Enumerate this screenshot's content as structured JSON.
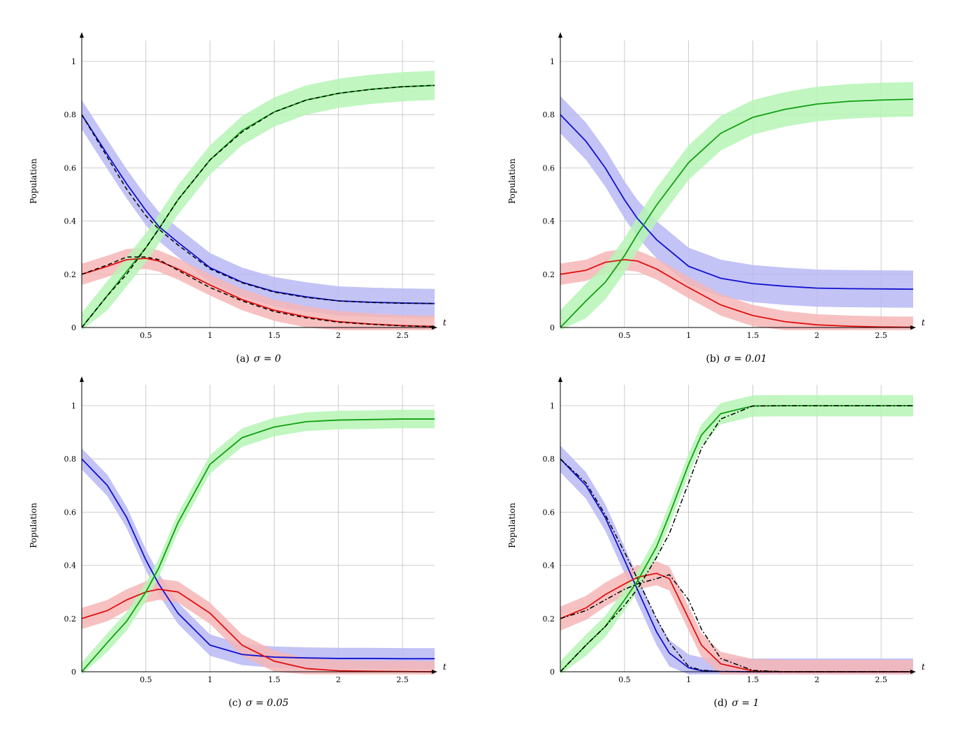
{
  "figure": {
    "colors": {
      "susceptible": "#1010d0",
      "infected": "#e01010",
      "recovered": "#10a010",
      "susceptible_band": "#b8b8f5",
      "infected_band": "#f6b6b6",
      "recovered_band": "#b6f4b6",
      "reference": "#000000",
      "grid": "#c0c0c0"
    }
  },
  "chart_data": [
    {
      "type": "line",
      "caption": "(a)",
      "caption_sigma": "σ = 0",
      "ylabel": "Population",
      "xlabel": "t",
      "xlim": [
        0,
        2.75
      ],
      "ylim": [
        0,
        1.1
      ],
      "x_ticks": [
        "0.5",
        "1",
        "1.5",
        "2",
        "2.5"
      ],
      "y_ticks": [
        "0",
        "0.2",
        "0.4",
        "0.6",
        "0.8",
        "1"
      ],
      "grid": true,
      "x": [
        0,
        0.2,
        0.35,
        0.5,
        0.6,
        0.75,
        1.0,
        1.25,
        1.5,
        1.75,
        2.0,
        2.25,
        2.5,
        2.75
      ],
      "series": [
        {
          "key": "susceptible",
          "y": [
            0.8,
            0.65,
            0.54,
            0.44,
            0.38,
            0.32,
            0.225,
            0.17,
            0.135,
            0.115,
            0.1,
            0.095,
            0.092,
            0.09
          ],
          "band": 0.055
        },
        {
          "key": "infected",
          "y": [
            0.2,
            0.23,
            0.255,
            0.26,
            0.25,
            0.22,
            0.16,
            0.105,
            0.065,
            0.04,
            0.022,
            0.013,
            0.007,
            0.004
          ],
          "band": 0.04
        },
        {
          "key": "recovered",
          "y": [
            0.0,
            0.12,
            0.21,
            0.3,
            0.37,
            0.48,
            0.63,
            0.74,
            0.81,
            0.855,
            0.88,
            0.895,
            0.905,
            0.91
          ],
          "band": 0.055
        }
      ],
      "reference": {
        "style": "dashed",
        "series": [
          [
            0.8,
            0.64,
            0.52,
            0.42,
            0.37,
            0.31,
            0.22,
            0.168,
            0.133,
            0.113,
            0.1,
            0.094,
            0.091,
            0.09
          ],
          [
            0.2,
            0.235,
            0.265,
            0.265,
            0.255,
            0.215,
            0.15,
            0.1,
            0.06,
            0.036,
            0.02,
            0.012,
            0.006,
            0.003
          ],
          [
            0.0,
            0.12,
            0.2,
            0.3,
            0.37,
            0.48,
            0.63,
            0.735,
            0.81,
            0.855,
            0.88,
            0.895,
            0.905,
            0.91
          ]
        ]
      }
    },
    {
      "type": "line",
      "caption": "(b)",
      "caption_sigma": "σ = 0.01",
      "ylabel": "Population",
      "xlabel": "t",
      "xlim": [
        0,
        2.75
      ],
      "ylim": [
        0,
        1.1
      ],
      "x_ticks": [
        "0.5",
        "1",
        "1.5",
        "2",
        "2.5"
      ],
      "y_ticks": [
        "0",
        "0.2",
        "0.4",
        "0.6",
        "0.8",
        "1"
      ],
      "grid": true,
      "x": [
        0,
        0.2,
        0.35,
        0.5,
        0.6,
        0.75,
        1.0,
        1.25,
        1.5,
        1.75,
        2.0,
        2.25,
        2.5,
        2.75
      ],
      "series": [
        {
          "key": "susceptible",
          "y": [
            0.8,
            0.7,
            0.6,
            0.48,
            0.41,
            0.33,
            0.23,
            0.185,
            0.165,
            0.155,
            0.148,
            0.146,
            0.145,
            0.144
          ],
          "band": 0.07
        },
        {
          "key": "infected",
          "y": [
            0.2,
            0.215,
            0.245,
            0.255,
            0.25,
            0.22,
            0.15,
            0.085,
            0.045,
            0.022,
            0.01,
            0.005,
            0.002,
            0.001
          ],
          "band": 0.04
        },
        {
          "key": "recovered",
          "y": [
            0.0,
            0.1,
            0.17,
            0.27,
            0.35,
            0.46,
            0.62,
            0.73,
            0.79,
            0.82,
            0.84,
            0.85,
            0.855,
            0.858
          ],
          "band": 0.065
        }
      ]
    },
    {
      "type": "line",
      "caption": "(c)",
      "caption_sigma": "σ = 0.05",
      "ylabel": "Population",
      "xlabel": "t",
      "xlim": [
        0,
        2.75
      ],
      "ylim": [
        0,
        1.1
      ],
      "x_ticks": [
        "0.5",
        "1",
        "1.5",
        "2",
        "2.5"
      ],
      "y_ticks": [
        "0",
        "0.2",
        "0.4",
        "0.6",
        "0.8",
        "1"
      ],
      "grid": true,
      "x": [
        0,
        0.2,
        0.35,
        0.5,
        0.6,
        0.75,
        1.0,
        1.25,
        1.5,
        1.75,
        2.0,
        2.25,
        2.5,
        2.75
      ],
      "series": [
        {
          "key": "susceptible",
          "y": [
            0.8,
            0.7,
            0.58,
            0.42,
            0.33,
            0.22,
            0.1,
            0.065,
            0.055,
            0.052,
            0.05,
            0.05,
            0.049,
            0.049
          ],
          "band": 0.04
        },
        {
          "key": "infected",
          "y": [
            0.2,
            0.23,
            0.27,
            0.3,
            0.31,
            0.3,
            0.22,
            0.1,
            0.04,
            0.012,
            0.004,
            0.002,
            0.001,
            0.0
          ],
          "band": 0.04
        },
        {
          "key": "recovered",
          "y": [
            0.0,
            0.11,
            0.19,
            0.3,
            0.39,
            0.56,
            0.78,
            0.88,
            0.92,
            0.94,
            0.946,
            0.948,
            0.95,
            0.95
          ],
          "band": 0.035
        }
      ]
    },
    {
      "type": "line",
      "caption": "(d)",
      "caption_sigma": "σ = 1",
      "ylabel": "Population",
      "xlabel": "t",
      "xlim": [
        0,
        2.75
      ],
      "ylim": [
        0,
        1.1
      ],
      "x_ticks": [
        "0.5",
        "1",
        "1.5",
        "2",
        "2.5"
      ],
      "y_ticks": [
        "0",
        "0.2",
        "0.4",
        "0.6",
        "0.8",
        "1"
      ],
      "grid": true,
      "x": [
        0,
        0.2,
        0.35,
        0.5,
        0.6,
        0.75,
        0.85,
        1.0,
        1.1,
        1.25,
        1.5,
        1.75,
        2.0,
        2.25,
        2.5,
        2.75
      ],
      "series": [
        {
          "key": "susceptible",
          "y": [
            0.8,
            0.7,
            0.58,
            0.42,
            0.31,
            0.15,
            0.07,
            0.015,
            0.004,
            0.001,
            0.0,
            0.0,
            0.0,
            0.0,
            0.0,
            0.0
          ],
          "band": 0.05
        },
        {
          "key": "infected",
          "y": [
            0.2,
            0.24,
            0.29,
            0.33,
            0.355,
            0.37,
            0.35,
            0.2,
            0.1,
            0.03,
            0.003,
            0.0,
            0.0,
            0.0,
            0.0,
            0.0
          ],
          "band": 0.045
        },
        {
          "key": "recovered",
          "y": [
            0.0,
            0.1,
            0.17,
            0.27,
            0.34,
            0.47,
            0.59,
            0.78,
            0.89,
            0.97,
            0.999,
            1.0,
            1.0,
            1.0,
            1.0,
            1.0
          ],
          "band": 0.04
        }
      ],
      "reference": {
        "style": "dashdot",
        "series": [
          [
            0.8,
            0.71,
            0.59,
            0.45,
            0.35,
            0.2,
            0.11,
            0.02,
            0.006,
            0.001,
            0.0,
            0.0,
            0.0,
            0.0,
            0.0,
            0.0
          ],
          [
            0.2,
            0.23,
            0.27,
            0.31,
            0.33,
            0.35,
            0.365,
            0.27,
            0.16,
            0.05,
            0.005,
            0.0,
            0.0,
            0.0,
            0.0,
            0.0
          ],
          [
            0.0,
            0.1,
            0.17,
            0.25,
            0.31,
            0.43,
            0.52,
            0.71,
            0.84,
            0.95,
            0.999,
            1.0,
            1.0,
            1.0,
            1.0,
            1.0
          ]
        ]
      }
    }
  ]
}
